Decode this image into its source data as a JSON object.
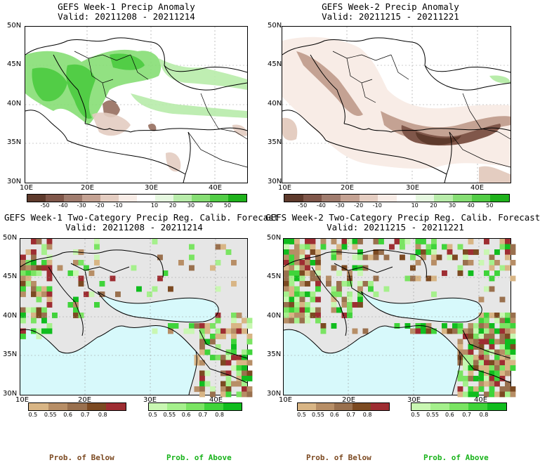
{
  "panels": {
    "p1": {
      "title": "GEFS Week-1 Precip Anomaly",
      "valid": "Valid: 20211208 - 20211214"
    },
    "p2": {
      "title": "GEFS Week-2 Precip Anomaly",
      "valid": "Valid: 20211215 - 20211221"
    },
    "p3": {
      "title": "GEFS Week-1 Two-Category Precip Reg. Calib. Forecast",
      "valid": "Valid: 20211208 - 20211214"
    },
    "p4": {
      "title": "GEFS Week-2 Two-Category Precip Reg. Calib. Forecast",
      "valid": "Valid: 20211215 - 20211221"
    }
  },
  "axes": {
    "lat_labels": [
      "50N",
      "45N",
      "40N",
      "35N",
      "30N"
    ],
    "lon_labels": [
      "10E",
      "20E",
      "30E",
      "40E"
    ]
  },
  "anomaly_colorbar": {
    "ticks": [
      "-50",
      "-40",
      "-30",
      "-20",
      "-10",
      "10",
      "20",
      "30",
      "40",
      "50"
    ],
    "colors": [
      "#5e3a2c",
      "#80574a",
      "#a07c6e",
      "#c4a293",
      "#e4cdc1",
      "#f8ece6",
      "#ffffff",
      "#e6f8e0",
      "#b8ecaa",
      "#86de74",
      "#52cd46",
      "#1fb21c"
    ]
  },
  "prob_colorbars": {
    "below": {
      "ticks": [
        "0.5",
        "0.55",
        "0.6",
        "0.7",
        "0.8"
      ],
      "colors": [
        "#d8b585",
        "#b78e66",
        "#99704e",
        "#7c4a22",
        "#9e2d32"
      ],
      "label": "Prob. of Below"
    },
    "above": {
      "ticks": [
        "0.5",
        "0.55",
        "0.6",
        "0.7",
        "0.8"
      ],
      "colors": [
        "#c9f7b2",
        "#a5f08c",
        "#7ae462",
        "#3fd43a",
        "#10bd1e"
      ],
      "label": "Prob. of Above"
    }
  },
  "colors": {
    "land_gray": "#e6e6e6",
    "sea": "#d7f9fb",
    "border": "#000000"
  }
}
